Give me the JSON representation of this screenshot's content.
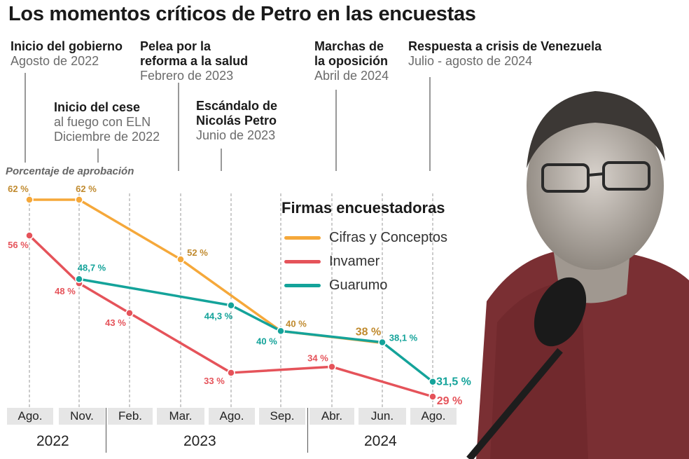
{
  "title": "Los momentos críticos de Petro en las encuestas",
  "events": [
    {
      "heading": "Inicio del gobierno",
      "date": "Agosto de 2022"
    },
    {
      "heading": "Inicio del cese",
      "detail": "al fuego con ELN",
      "date": "Diciembre de 2022"
    },
    {
      "heading": "Pelea por la",
      "heading2": "reforma a la salud",
      "date": "Febrero de 2023"
    },
    {
      "heading": "Escándalo de",
      "heading2": "Nicolás Petro",
      "date": "Junio de 2023"
    },
    {
      "heading": "Marchas de",
      "heading2": "la oposición",
      "date": "Abril de 2024"
    },
    {
      "heading": "Respuesta a crisis de Venezuela",
      "date": "Julio - agosto de 2024"
    }
  ],
  "legend": {
    "title": "Firmas encuestadoras"
  },
  "colors": {
    "cifras": "#f5a83a",
    "invamer": "#e5535a",
    "guarumo": "#14a39a",
    "cifras_label": "#c08a2e"
  },
  "chart_data": {
    "type": "line",
    "ylabel": "Porcentaje de aprobación",
    "ylim": [
      25,
      65
    ],
    "grid": "vertical dashed at each month",
    "legend_position": "right",
    "categories": [
      "Ago.",
      "Nov.",
      "Feb.",
      "Mar.",
      "Ago.",
      "Sep.",
      "Abr.",
      "Jun.",
      "Ago."
    ],
    "years": [
      "2022",
      "2023",
      "2024"
    ],
    "series": [
      {
        "name": "Cifras y Conceptos",
        "color_key": "cifras",
        "points": [
          {
            "x": "Ago. 2022",
            "y": 62,
            "label": "62 %"
          },
          {
            "x": "Nov. 2022",
            "y": 62,
            "label": "62 %"
          },
          {
            "x": "Mar. 2023",
            "y": 52,
            "label": "52 %"
          },
          {
            "x": "Sep. 2023",
            "y": 40,
            "label": "40 %"
          },
          {
            "x": "Jun. 2024",
            "y": 38,
            "label": "38 %"
          }
        ]
      },
      {
        "name": "Invamer",
        "color_key": "invamer",
        "points": [
          {
            "x": "Ago. 2022",
            "y": 56,
            "label": "56 %"
          },
          {
            "x": "Nov. 2022",
            "y": 48,
            "label": "48 %"
          },
          {
            "x": "Feb. 2023",
            "y": 43,
            "label": "43 %"
          },
          {
            "x": "Ago. 2023",
            "y": 33,
            "label": "33 %"
          },
          {
            "x": "Abr. 2024",
            "y": 34,
            "label": "34 %"
          },
          {
            "x": "Ago. 2024",
            "y": 29,
            "label": "29 %"
          }
        ]
      },
      {
        "name": "Guarumo",
        "color_key": "guarumo",
        "points": [
          {
            "x": "Nov. 2022",
            "y": 48.7,
            "label": "48,7 %"
          },
          {
            "x": "Ago. 2023",
            "y": 44.3,
            "label": "44,3 %"
          },
          {
            "x": "Sep. 2023",
            "y": 40,
            "label": "40 %"
          },
          {
            "x": "Jun. 2024",
            "y": 38.1,
            "label": "38,1 %"
          },
          {
            "x": "Ago. 2024",
            "y": 31.5,
            "label": "31,5 %"
          }
        ]
      }
    ]
  }
}
